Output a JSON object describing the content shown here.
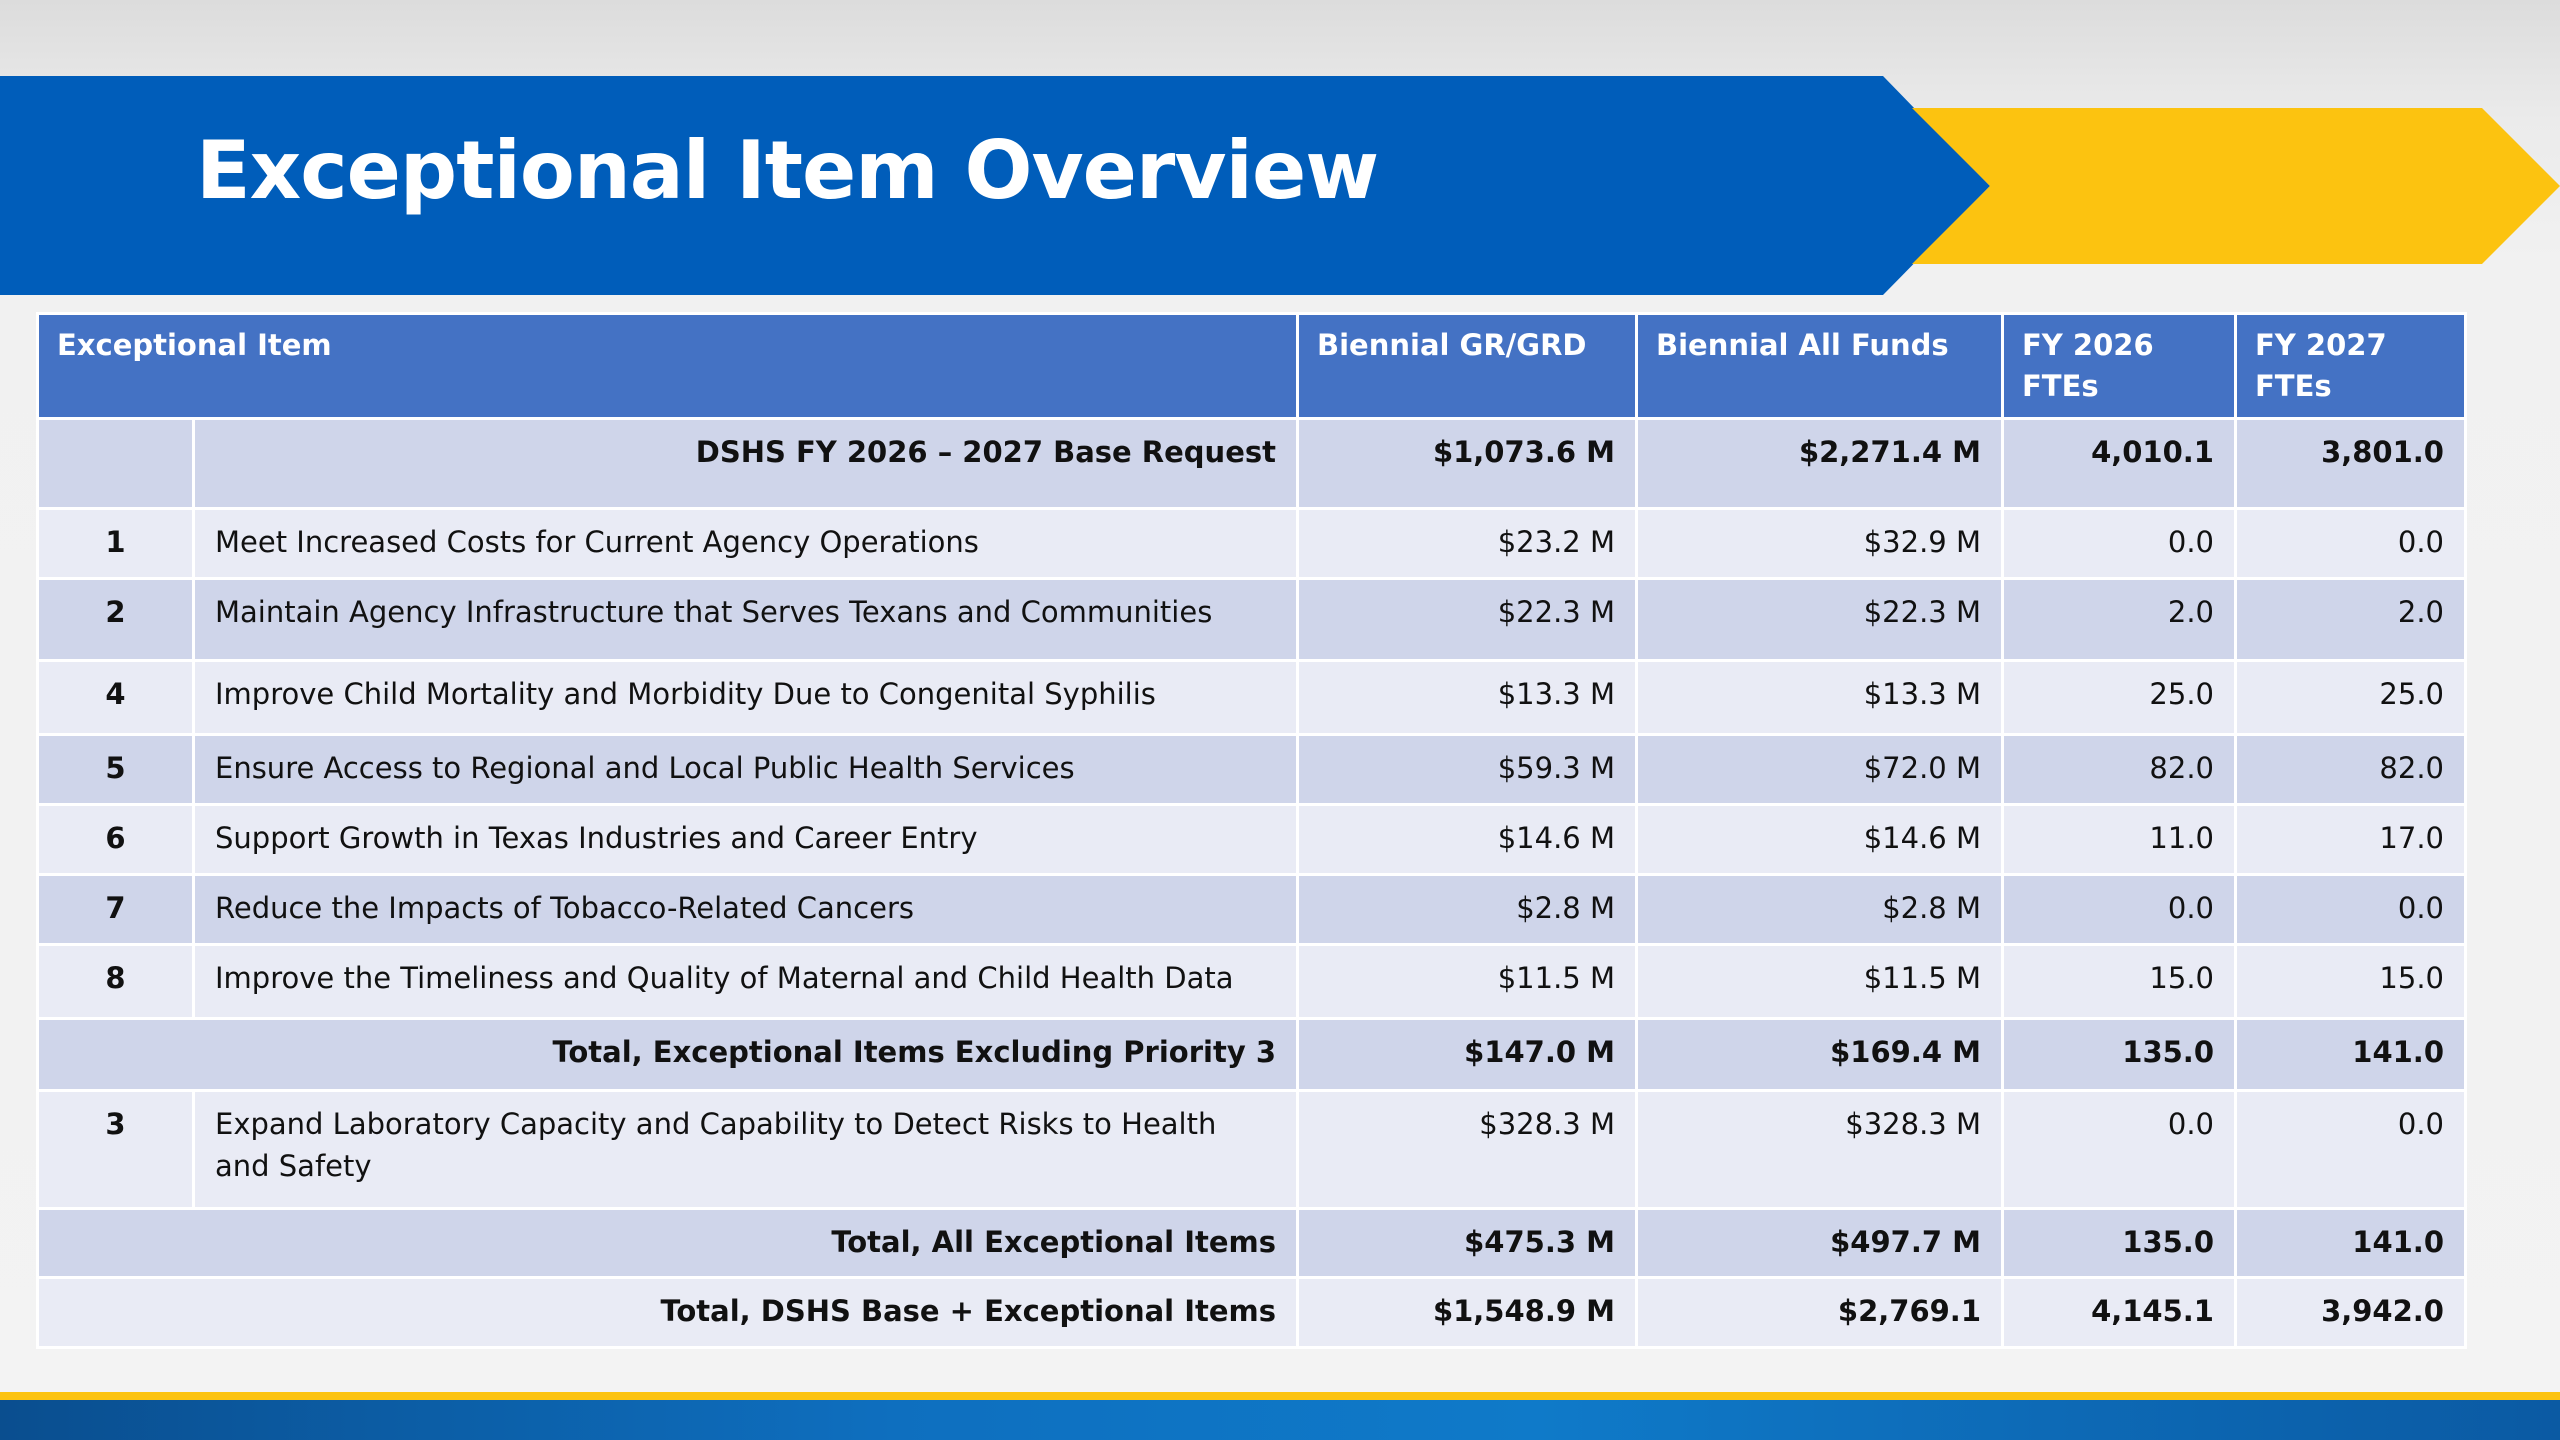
{
  "slide": {
    "title": "Exceptional Item Overview"
  },
  "table": {
    "headers": {
      "item": "Exceptional Item",
      "gr": "Biennial GR/GRD",
      "all": "Biennial All Funds",
      "fy26": "FY 2026 FTEs",
      "fy27": "FY 2027 FTEs"
    },
    "base": {
      "label": "DSHS FY 2026 – 2027 Base Request",
      "gr": "$1,073.6 M",
      "all": "$2,271.4 M",
      "fy26": "4,010.1",
      "fy27": "3,801.0"
    },
    "rows": [
      {
        "priority": "1",
        "item": "Meet Increased Costs for Current Agency Operations",
        "gr": "$23.2 M",
        "all": "$32.9 M",
        "fy26": "0.0",
        "fy27": "0.0"
      },
      {
        "priority": "2",
        "item": "Maintain Agency Infrastructure that Serves Texans and Communities",
        "gr": "$22.3 M",
        "all": "$22.3 M",
        "fy26": "2.0",
        "fy27": "2.0"
      },
      {
        "priority": "4",
        "item": "Improve Child Mortality and Morbidity Due to Congenital Syphilis",
        "gr": "$13.3 M",
        "all": "$13.3 M",
        "fy26": "25.0",
        "fy27": "25.0"
      },
      {
        "priority": "5",
        "item": "Ensure Access to Regional and Local Public Health Services",
        "gr": "$59.3 M",
        "all": "$72.0 M",
        "fy26": "82.0",
        "fy27": "82.0"
      },
      {
        "priority": "6",
        "item": "Support Growth in Texas Industries and Career Entry",
        "gr": "$14.6 M",
        "all": "$14.6 M",
        "fy26": "11.0",
        "fy27": "17.0"
      },
      {
        "priority": "7",
        "item": "Reduce the Impacts of Tobacco-Related Cancers",
        "gr": "$2.8 M",
        "all": "$2.8 M",
        "fy26": "0.0",
        "fy27": "0.0"
      },
      {
        "priority": "8",
        "item": "Improve the Timeliness and Quality of Maternal and Child Health Data",
        "gr": "$11.5 M",
        "all": "$11.5 M",
        "fy26": "15.0",
        "fy27": "15.0"
      }
    ],
    "subtotal": {
      "label": "Total, Exceptional Items Excluding Priority 3",
      "gr": "$147.0 M",
      "all": "$169.4 M",
      "fy26": "135.0",
      "fy27": "141.0"
    },
    "row3": {
      "priority": "3",
      "item": "Expand Laboratory Capacity and Capability to Detect Risks to Health and Safety",
      "gr": "$328.3 M",
      "all": "$328.3 M",
      "fy26": "0.0",
      "fy27": "0.0"
    },
    "total_all": {
      "label": "Total, All Exceptional Items",
      "gr": "$475.3 M",
      "all": "$497.7 M",
      "fy26": "135.0",
      "fy27": "141.0"
    },
    "grand_total": {
      "label": "Total, DSHS Base + Exceptional Items",
      "gr": "$1,548.9 M",
      "all": "$2,769.1",
      "fy26": "4,145.1",
      "fy27": "3,942.0"
    }
  },
  "colors": {
    "banner_blue": "#005dba",
    "chevron_yellow": "#fcc310",
    "header_blue": "#4472c4",
    "row_dark": "#cfd5ea",
    "row_light": "#e9ebf5"
  }
}
